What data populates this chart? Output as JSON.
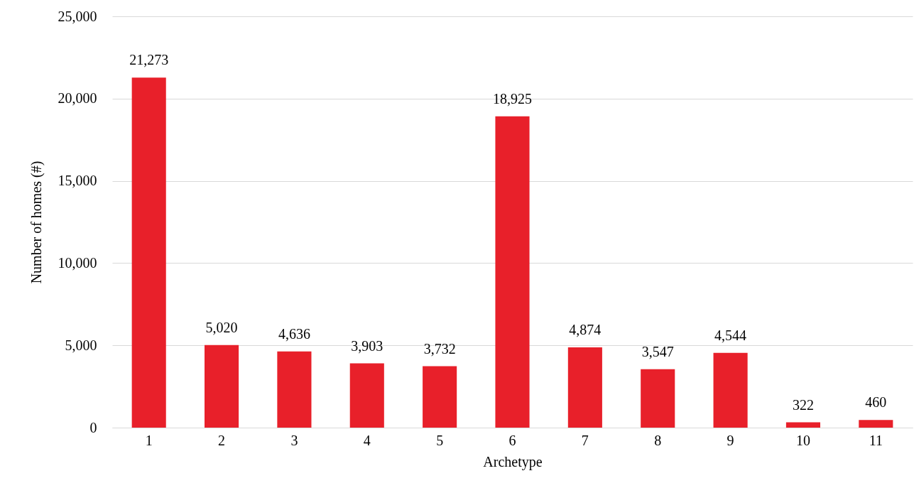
{
  "chart_data": {
    "type": "bar",
    "xlabel": "Archetype",
    "ylabel": "Number of homes (#)",
    "categories": [
      "1",
      "2",
      "3",
      "4",
      "5",
      "6",
      "7",
      "8",
      "9",
      "10",
      "11"
    ],
    "values": [
      21273,
      5020,
      4636,
      3903,
      3732,
      18925,
      4874,
      3547,
      4544,
      322,
      460
    ],
    "value_labels": [
      "21,273",
      "5,020",
      "4,636",
      "3,903",
      "3,732",
      "18,925",
      "4,874",
      "3,547",
      "4,544",
      "322",
      "460"
    ],
    "color": "#e8202a",
    "ylim": [
      0,
      25000
    ],
    "yticks": [
      0,
      {
        "value": 5000,
        "label": "5,000"
      },
      {
        "value": 10000,
        "label": "10,000"
      },
      {
        "value": 15000,
        "label": "15,000"
      },
      {
        "value": 20000,
        "label": "20,000"
      },
      {
        "value": 25000,
        "label": "25,000"
      }
    ],
    "grid": "y"
  }
}
